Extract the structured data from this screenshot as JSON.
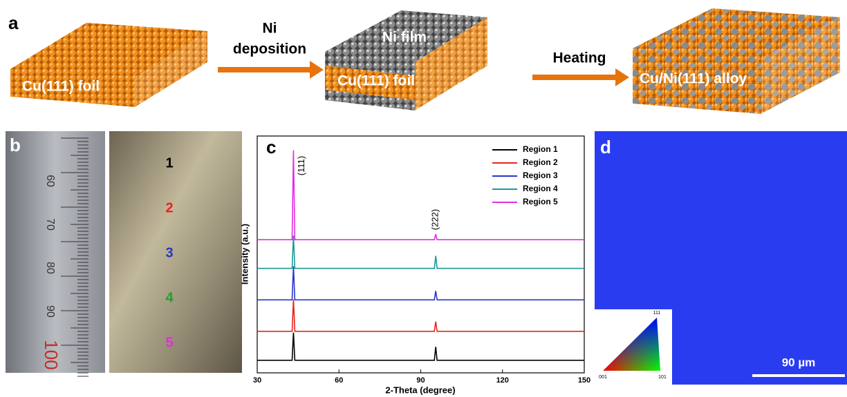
{
  "panel_a": {
    "label": "a",
    "foil_label": "Cu(111) foil",
    "arrow1_label": [
      "Ni",
      "deposition"
    ],
    "film_label": "Ni film",
    "foil_label_2": "Cu(111) foil",
    "arrow2_label": "Heating",
    "alloy_label": "Cu/Ni(111) alloy"
  },
  "panel_b": {
    "label": "b",
    "ruler_labels": [
      "60",
      "70",
      "80",
      "90",
      "100"
    ],
    "regions": [
      "1",
      "2",
      "3",
      "4",
      "5"
    ],
    "region_colors": [
      "#000000",
      "#e8231c",
      "#2a35c8",
      "#22a02a",
      "#e22ee0"
    ]
  },
  "chart_data": {
    "type": "line",
    "label": "c",
    "x_label": "2-Theta (degree)",
    "y_label": "Intensity (a.u.)",
    "annotations": [
      "(111)",
      "(222)"
    ],
    "x": [
      30,
      42.8,
      43.3,
      43.8,
      95,
      95.5,
      96,
      150
    ],
    "xlim": [
      30,
      150
    ],
    "xticks": [
      30,
      60,
      90,
      120,
      150
    ],
    "ylim": [
      0,
      100
    ],
    "series": [
      {
        "name": "Region 1",
        "color": "#000000",
        "values": [
          5.3,
          5.3,
          17,
          5.3,
          5.3,
          11,
          5.3,
          5.3
        ]
      },
      {
        "name": "Region 2",
        "color": "#e8231c",
        "values": [
          17.5,
          17.5,
          31,
          17.5,
          17.5,
          21.6,
          17.5,
          17.5
        ]
      },
      {
        "name": "Region 3",
        "color": "#2a35c8",
        "values": [
          30.8,
          30.8,
          45,
          30.8,
          30.8,
          34.6,
          30.8,
          30.8
        ]
      },
      {
        "name": "Region 4",
        "color": "#1a9a9a",
        "values": [
          44.1,
          44.1,
          58,
          44.1,
          44.1,
          49.4,
          44.1,
          44.1
        ]
      },
      {
        "name": "Region 5",
        "color": "#e22ee0",
        "values": [
          56.2,
          56.2,
          94,
          56.2,
          56.2,
          58.6,
          56.2,
          56.2
        ]
      }
    ]
  },
  "panel_d": {
    "label": "d",
    "scale_bar": "90 µm",
    "ipf_labels": [
      "111",
      "001",
      "101"
    ]
  }
}
